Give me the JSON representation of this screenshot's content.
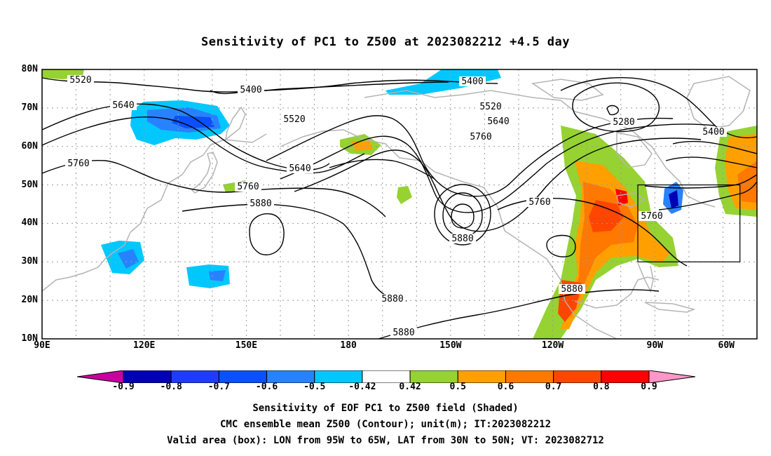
{
  "title": "Sensitivity of PC1 to Z500 at 2023082212 +4.5 day",
  "map": {
    "lon_range": [
      "90E",
      "300E"
    ],
    "lat_range": [
      "10N",
      "80N"
    ],
    "lat_ticks": [
      "80N",
      "70N",
      "60N",
      "50N",
      "40N",
      "30N",
      "20N",
      "10N"
    ],
    "lon_ticks": [
      "90E",
      "120E",
      "150E",
      "180",
      "150W",
      "120W",
      "90W",
      "60W"
    ],
    "valid_box": {
      "lon_west": "95W",
      "lon_east": "65W",
      "lat_south": "30N",
      "lat_north": "50N"
    },
    "contour_labels": [
      "5520",
      "5400",
      "5640",
      "5520",
      "5400",
      "5520",
      "5640",
      "5760",
      "5280",
      "5400",
      "5760",
      "5640",
      "5760",
      "5880",
      "5880",
      "5760",
      "5760",
      "5880",
      "5880",
      "5880"
    ],
    "colors": {
      "coast": "#b4b4b4",
      "grid": "#9a9a9a",
      "contour": "#000000"
    }
  },
  "colorbar": {
    "labels": [
      "-0.9",
      "-0.8",
      "-0.7",
      "-0.6",
      "-0.5",
      "-0.42",
      "0.42",
      "0.5",
      "0.6",
      "0.7",
      "0.8",
      "0.9"
    ],
    "colors": [
      "#c800a0",
      "#0000b4",
      "#1e3cff",
      "#0a50ff",
      "#2882ff",
      "#00c8ff",
      "#ffffff",
      "#96d232",
      "#ffa000",
      "#ff7800",
      "#ff4600",
      "#ff0000",
      "#ff96c8"
    ]
  },
  "footer": {
    "line1": "Sensitivity of EOF PC1 to Z500 field (Shaded)",
    "line2": "CMC ensemble mean Z500 (Contour); unit(m); IT:2023082212",
    "line3": "Valid area (box): LON from 95W to 65W, LAT from 30N to 50N; VT: 2023082712"
  }
}
